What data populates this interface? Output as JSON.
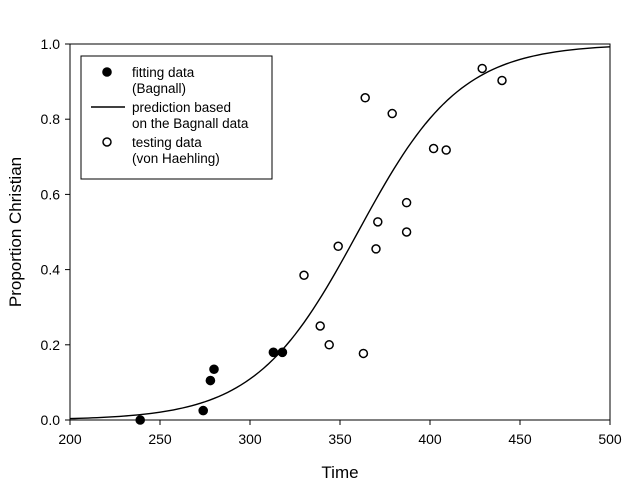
{
  "chart_data": {
    "type": "scatter",
    "title": "",
    "xlabel": "Time",
    "ylabel": "Proportion Christian",
    "xlim": [
      200,
      500
    ],
    "ylim": [
      0.0,
      1.0
    ],
    "xticks": [
      200,
      250,
      300,
      350,
      400,
      450,
      500
    ],
    "xtick_labels": [
      "200",
      "250",
      "300",
      "350",
      "400",
      "450",
      "500"
    ],
    "yticks": [
      0.0,
      0.2,
      0.4,
      0.6,
      0.8,
      1.0
    ],
    "ytick_labels": [
      "0.0",
      "0.2",
      "0.4",
      "0.6",
      "0.8",
      "1.0"
    ],
    "grid": false,
    "legend_position": "top-left",
    "legend": [
      {
        "marker": "filled-circle",
        "lines": [
          "fitting data",
          "(Bagnall)"
        ]
      },
      {
        "marker": "line",
        "lines": [
          "prediction based",
          "on the Bagnall data"
        ]
      },
      {
        "marker": "open-circle",
        "lines": [
          "testing data",
          "(von Haehling)"
        ]
      }
    ],
    "series": [
      {
        "kind": "filled-circle",
        "points": [
          {
            "x": 239,
            "y": 0.0
          },
          {
            "x": 274,
            "y": 0.025
          },
          {
            "x": 278,
            "y": 0.105
          },
          {
            "x": 280,
            "y": 0.135
          },
          {
            "x": 313,
            "y": 0.18
          },
          {
            "x": 318,
            "y": 0.18
          }
        ]
      },
      {
        "kind": "line",
        "model": "logistic",
        "midpoint": 360,
        "rate": 0.035,
        "x_range": [
          200,
          500
        ],
        "samples": 121
      },
      {
        "kind": "open-circle",
        "points": [
          {
            "x": 330,
            "y": 0.385
          },
          {
            "x": 339,
            "y": 0.25
          },
          {
            "x": 344,
            "y": 0.2
          },
          {
            "x": 349,
            "y": 0.462
          },
          {
            "x": 363,
            "y": 0.177
          },
          {
            "x": 364,
            "y": 0.857
          },
          {
            "x": 370,
            "y": 0.455
          },
          {
            "x": 371,
            "y": 0.527
          },
          {
            "x": 379,
            "y": 0.815
          },
          {
            "x": 387,
            "y": 0.578
          },
          {
            "x": 387,
            "y": 0.5
          },
          {
            "x": 402,
            "y": 0.722
          },
          {
            "x": 409,
            "y": 0.718
          },
          {
            "x": 429,
            "y": 0.935
          },
          {
            "x": 440,
            "y": 0.903
          }
        ]
      }
    ]
  }
}
